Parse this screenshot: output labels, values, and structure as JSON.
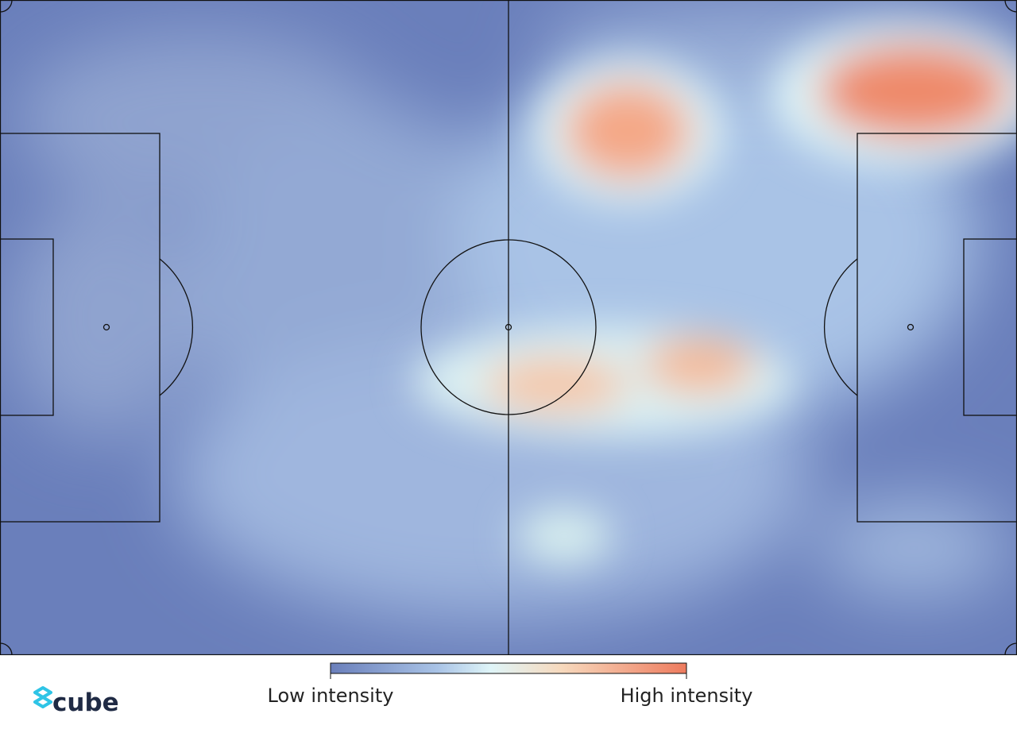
{
  "legend": {
    "low_label": "Low intensity",
    "high_label": "High intensity"
  },
  "logo": {
    "text": "cube"
  }
}
